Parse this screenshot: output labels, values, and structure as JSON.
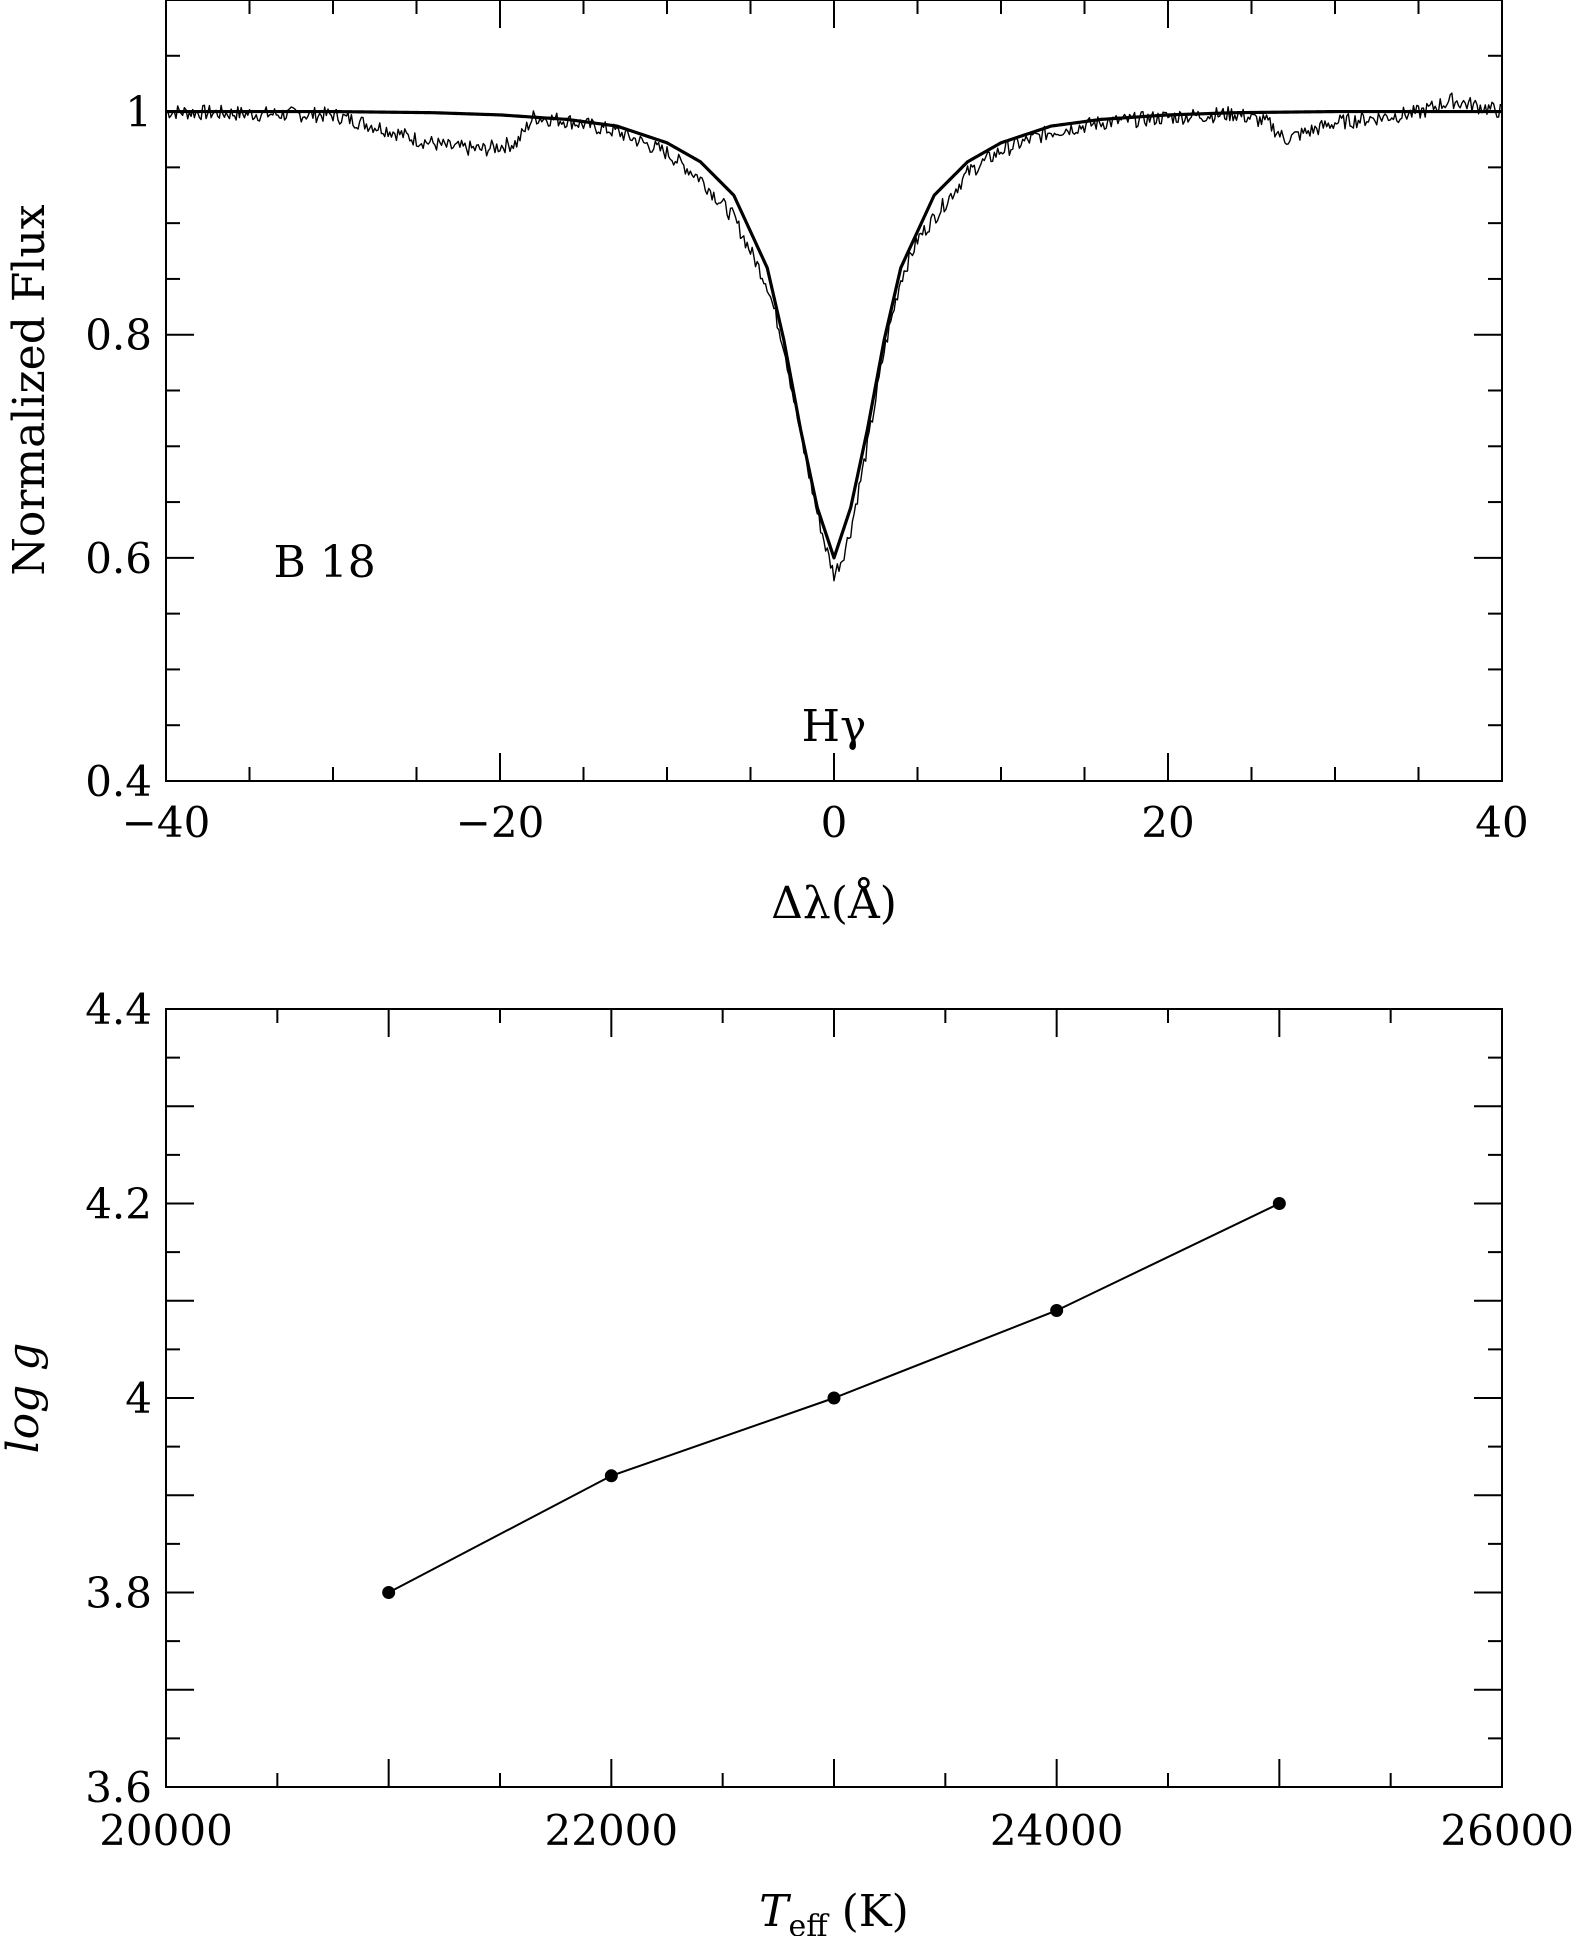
{
  "chart_data": [
    {
      "type": "line",
      "xlabel": "Δλ(Å)",
      "ylabel": "Normalized Flux",
      "xlim": [
        -40,
        40
      ],
      "ylim": [
        0.4,
        1.1
      ],
      "x_ticks": [
        -40,
        -20,
        0,
        20,
        40
      ],
      "x_tick_labels": [
        "−40",
        "−20",
        "0",
        "20",
        "40"
      ],
      "y_ticks": [
        0.4,
        0.6,
        0.8,
        1.0
      ],
      "y_tick_labels": [
        "0.4",
        "0.6",
        "0.8",
        "1"
      ],
      "grid": false,
      "annotations": [
        {
          "text": "B  18",
          "x": -30.5,
          "y": 0.597
        },
        {
          "text": "Hγ",
          "x": 0,
          "y": 0.45
        }
      ],
      "series": [
        {
          "style": "smooth",
          "x": [
            -40,
            -30,
            -24,
            -20,
            -16,
            -13,
            -10,
            -8,
            -6,
            -4,
            -3,
            -2,
            -1,
            0,
            1,
            2,
            3,
            4,
            6,
            8,
            10,
            13,
            16,
            20,
            24,
            30,
            40
          ],
          "y": [
            1.0,
            1.0,
            0.999,
            0.997,
            0.993,
            0.987,
            0.972,
            0.955,
            0.925,
            0.86,
            0.795,
            0.715,
            0.645,
            0.6,
            0.645,
            0.715,
            0.795,
            0.86,
            0.925,
            0.955,
            0.972,
            0.987,
            0.993,
            0.997,
            0.999,
            1.0,
            1.0
          ]
        },
        {
          "style": "noisy",
          "x": [
            -40,
            -35,
            -30,
            -27,
            -25,
            -23,
            -21,
            -19,
            -18,
            -16,
            -13,
            -10,
            -8,
            -6,
            -4,
            -3,
            -2,
            -1,
            -0.5,
            0,
            0.5,
            1,
            2,
            3,
            4,
            5,
            6,
            7,
            8,
            10,
            13,
            16,
            20,
            24,
            26,
            27,
            30,
            35,
            37,
            40
          ],
          "y": [
            1.0,
            0.998,
            0.997,
            0.985,
            0.975,
            0.968,
            0.966,
            0.972,
            0.995,
            0.992,
            0.982,
            0.963,
            0.94,
            0.905,
            0.845,
            0.79,
            0.71,
            0.64,
            0.61,
            0.585,
            0.6,
            0.625,
            0.7,
            0.785,
            0.85,
            0.885,
            0.905,
            0.925,
            0.945,
            0.965,
            0.982,
            0.99,
            0.995,
            0.998,
            0.99,
            0.975,
            0.99,
            0.999,
            1.01,
            1.0
          ]
        }
      ]
    },
    {
      "type": "line",
      "xlabel": "T",
      "xlabel_sub": "eff",
      "xlabel_unit": "(K)",
      "ylabel": "log g",
      "xlim": [
        20000,
        26000
      ],
      "ylim": [
        3.6,
        4.4
      ],
      "x_ticks": [
        20000,
        22000,
        24000,
        26000
      ],
      "x_tick_labels": [
        "20000",
        "22000",
        "24000",
        "26000"
      ],
      "y_ticks": [
        3.6,
        3.8,
        4.0,
        4.2,
        4.4
      ],
      "y_tick_labels": [
        "3.6",
        "3.8",
        "4",
        "4.2",
        "4.4"
      ],
      "grid": false,
      "series": [
        {
          "x": [
            21000,
            22000,
            23000,
            24000,
            25000
          ],
          "y": [
            3.8,
            3.92,
            4.0,
            4.09,
            4.2
          ]
        }
      ]
    }
  ]
}
